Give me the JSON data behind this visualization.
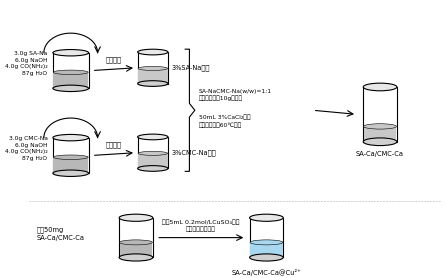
{
  "bg_color": "#ffffff",
  "row1": {
    "beaker1_label": "3.0g SA-Na\n6.0g NaOH\n4.0g CO(NH₂)₂\n87g H₂O",
    "arrow1_label": "无分混合",
    "beaker2_label": "3%SA-Na溶液"
  },
  "row2": {
    "beaker1_label": "3.0g CMC-Na\n6.0g NaOH\n4.0g CO(NH₂)₂\n87g H₂O",
    "arrow1_label": "天分混合",
    "beaker2_label": "3%CMC-Na溶液"
  },
  "row3": {
    "beaker1_label": "称取50mg\nSA-Ca/CMC-Ca",
    "arrow1_label": "加入5mL 0.2mol/LCuSO₄溶液\n掄拌、过滤、烘干",
    "beaker2_label": "SA-Ca/CMC-Ca@Cu²⁺"
  },
  "right_panel": {
    "combine_text": "SA-NaCMC-Na(w/w)=1:1\n混合为质量为10g的溶液",
    "combine_text2": "50mL 3%CaCl₂溶液\n掄拌、过滤、60℃烘干",
    "product_label": "SA-Ca/CMC-Ca"
  }
}
